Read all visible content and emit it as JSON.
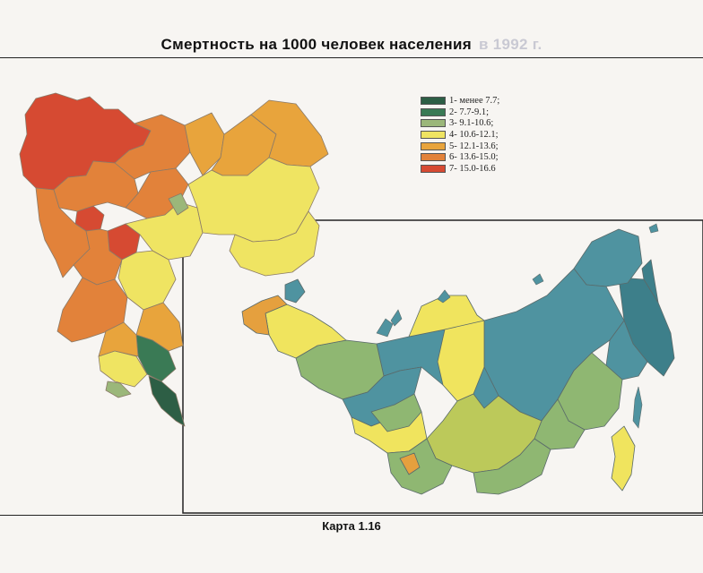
{
  "title": "Смертность на 1000 человек населения",
  "title_faded": "в 1992 г.",
  "caption": "Карта 1.16",
  "legend": [
    {
      "label": "1- менее 7.7;",
      "color": "#2d5e45"
    },
    {
      "label": "2- 7.7-9.1;",
      "color": "#3a7a55"
    },
    {
      "label": "3- 9.1-10.6;",
      "color": "#9bb77a"
    },
    {
      "label": "4- 10.6-12.1;",
      "color": "#efe462"
    },
    {
      "label": "5- 12.1-13.6;",
      "color": "#e8a43c"
    },
    {
      "label": "6- 13.6-15.0;",
      "color": "#e2823a"
    },
    {
      "label": "7- 15.0-16.6",
      "color": "#d64a32"
    }
  ],
  "colors": {
    "inset_dark_teal": "#3d7f8a",
    "inset_teal": "#4f93a0",
    "inset_green": "#8fb772",
    "inset_yellow": "#f0e45e",
    "inset_yellow_green": "#bcc95a",
    "inset_orange": "#e5a03e"
  }
}
